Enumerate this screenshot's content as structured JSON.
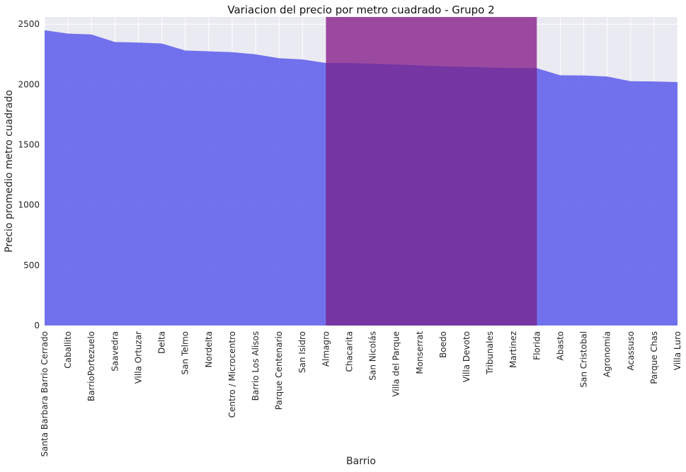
{
  "chart_data": {
    "type": "area",
    "title": "Variacion del precio por metro cuadrado - Grupo 2",
    "xlabel": "Barrio",
    "ylabel": "Precio promedio metro cuadrado",
    "ylim": [
      0,
      2560
    ],
    "yticks": [
      0,
      500,
      1000,
      1500,
      2000,
      2500
    ],
    "grid": true,
    "categories": [
      "Santa Barbara Barrio Cerrado",
      "Caballito",
      "BarrioPortezuelo",
      "Saavedra",
      "Villa Ortuzar",
      "Delta",
      "San Telmo",
      "Nordelta",
      "Centro / Microcentro",
      "Barrio Los Alisos",
      "Parque Centenario",
      "San Isidro",
      "Almagro",
      "Chacarita",
      "San Nicolás",
      "Villa del Parque",
      "Monserrat",
      "Boedo",
      "Villa Devoto",
      "Tribunales",
      "Martinez",
      "Florida",
      "Abasto",
      "San Cristobal",
      "Agronomía",
      "Acassuso",
      "Parque Chas",
      "Villa Luro"
    ],
    "values": [
      2450,
      2422,
      2415,
      2352,
      2348,
      2340,
      2282,
      2275,
      2268,
      2250,
      2218,
      2208,
      2178,
      2178,
      2172,
      2166,
      2158,
      2150,
      2146,
      2140,
      2136,
      2135,
      2076,
      2075,
      2066,
      2027,
      2025,
      2020
    ],
    "highlight": {
      "from_category": "Almagro",
      "to_category": "Florida"
    },
    "colors": {
      "area": "#6a6aec",
      "highlight": "#9b49a0",
      "overlap": "#7535a3",
      "background": "#eaeaf2",
      "grid": "#ffffff"
    }
  }
}
